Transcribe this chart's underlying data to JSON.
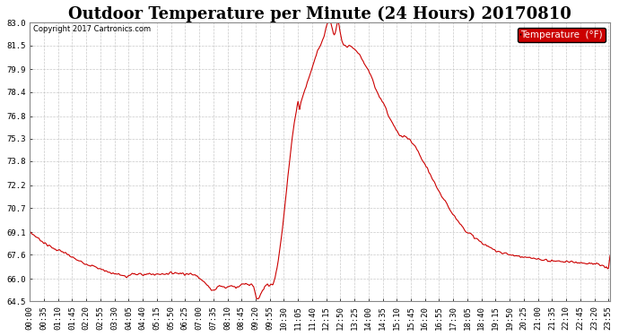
{
  "title": "Outdoor Temperature per Minute (24 Hours) 20170810",
  "copyright_text": "Copyright 2017 Cartronics.com",
  "legend_label": "Temperature  (°F)",
  "line_color": "#cc0000",
  "background_color": "#ffffff",
  "plot_bg_color": "#ffffff",
  "grid_color": "#bbbbbb",
  "ylim": [
    64.5,
    83.0
  ],
  "yticks": [
    64.5,
    66.0,
    67.6,
    69.1,
    70.7,
    72.2,
    73.8,
    75.3,
    76.8,
    78.4,
    79.9,
    81.5,
    83.0
  ],
  "title_fontsize": 13,
  "tick_fontsize": 6.5,
  "legend_bg_color": "#cc0000",
  "legend_text_color": "#ffffff",
  "key_points": [
    [
      0,
      69.1
    ],
    [
      20,
      68.7
    ],
    [
      40,
      68.3
    ],
    [
      60,
      68.0
    ],
    [
      80,
      67.8
    ],
    [
      100,
      67.5
    ],
    [
      120,
      67.2
    ],
    [
      140,
      67.0
    ],
    [
      160,
      66.8
    ],
    [
      180,
      66.6
    ],
    [
      200,
      66.4
    ],
    [
      220,
      66.3
    ],
    [
      235,
      66.15
    ],
    [
      240,
      66.1
    ],
    [
      245,
      66.2
    ],
    [
      250,
      66.3
    ],
    [
      255,
      66.35
    ],
    [
      260,
      66.3
    ],
    [
      265,
      66.25
    ],
    [
      270,
      66.3
    ],
    [
      275,
      66.35
    ],
    [
      280,
      66.3
    ],
    [
      290,
      66.3
    ],
    [
      300,
      66.3
    ],
    [
      320,
      66.3
    ],
    [
      340,
      66.35
    ],
    [
      360,
      66.4
    ],
    [
      380,
      66.35
    ],
    [
      400,
      66.3
    ],
    [
      415,
      66.2
    ],
    [
      425,
      66.0
    ],
    [
      435,
      65.7
    ],
    [
      445,
      65.4
    ],
    [
      450,
      65.3
    ],
    [
      455,
      65.25
    ],
    [
      460,
      65.3
    ],
    [
      465,
      65.45
    ],
    [
      470,
      65.55
    ],
    [
      475,
      65.5
    ],
    [
      480,
      65.45
    ],
    [
      485,
      65.4
    ],
    [
      490,
      65.45
    ],
    [
      495,
      65.5
    ],
    [
      500,
      65.55
    ],
    [
      505,
      65.5
    ],
    [
      510,
      65.45
    ],
    [
      515,
      65.5
    ],
    [
      520,
      65.55
    ],
    [
      525,
      65.6
    ],
    [
      530,
      65.65
    ],
    [
      535,
      65.7
    ],
    [
      540,
      65.65
    ],
    [
      545,
      65.6
    ],
    [
      550,
      65.65
    ],
    [
      555,
      65.5
    ],
    [
      558,
      65.2
    ],
    [
      560,
      64.9
    ],
    [
      562,
      64.7
    ],
    [
      565,
      64.6
    ],
    [
      568,
      64.65
    ],
    [
      570,
      64.8
    ],
    [
      573,
      65.0
    ],
    [
      575,
      65.1
    ],
    [
      577,
      65.2
    ],
    [
      580,
      65.3
    ],
    [
      582,
      65.4
    ],
    [
      585,
      65.5
    ],
    [
      587,
      65.55
    ],
    [
      590,
      65.6
    ],
    [
      592,
      65.5
    ],
    [
      595,
      65.55
    ],
    [
      598,
      65.6
    ],
    [
      600,
      65.65
    ],
    [
      603,
      65.7
    ],
    [
      605,
      65.8
    ],
    [
      608,
      66.0
    ],
    [
      610,
      66.3
    ],
    [
      613,
      66.7
    ],
    [
      616,
      67.2
    ],
    [
      620,
      68.0
    ],
    [
      625,
      69.0
    ],
    [
      630,
      70.2
    ],
    [
      635,
      71.5
    ],
    [
      640,
      72.8
    ],
    [
      645,
      74.0
    ],
    [
      650,
      75.2
    ],
    [
      655,
      76.2
    ],
    [
      660,
      77.0
    ],
    [
      663,
      77.5
    ],
    [
      665,
      77.8
    ],
    [
      667,
      77.5
    ],
    [
      669,
      77.3
    ],
    [
      671,
      77.6
    ],
    [
      675,
      78.0
    ],
    [
      680,
      78.4
    ],
    [
      685,
      78.8
    ],
    [
      690,
      79.2
    ],
    [
      695,
      79.6
    ],
    [
      700,
      80.0
    ],
    [
      705,
      80.4
    ],
    [
      710,
      80.8
    ],
    [
      715,
      81.2
    ],
    [
      720,
      81.5
    ],
    [
      725,
      81.8
    ],
    [
      728,
      82.0
    ],
    [
      730,
      82.2
    ],
    [
      733,
      82.5
    ],
    [
      735,
      82.7
    ],
    [
      737,
      82.9
    ],
    [
      739,
      83.0
    ],
    [
      741,
      83.1
    ],
    [
      743,
      83.15
    ],
    [
      745,
      83.1
    ],
    [
      747,
      82.9
    ],
    [
      749,
      82.7
    ],
    [
      751,
      82.5
    ],
    [
      753,
      82.3
    ],
    [
      755,
      82.2
    ],
    [
      757,
      82.3
    ],
    [
      759,
      82.5
    ],
    [
      761,
      82.8
    ],
    [
      763,
      83.0
    ],
    [
      765,
      83.05
    ],
    [
      767,
      82.8
    ],
    [
      769,
      82.5
    ],
    [
      771,
      82.2
    ],
    [
      774,
      81.8
    ],
    [
      778,
      81.5
    ],
    [
      783,
      81.5
    ],
    [
      788,
      81.4
    ],
    [
      793,
      81.5
    ],
    [
      798,
      81.4
    ],
    [
      803,
      81.3
    ],
    [
      808,
      81.2
    ],
    [
      813,
      81.0
    ],
    [
      820,
      80.8
    ],
    [
      830,
      80.3
    ],
    [
      840,
      79.8
    ],
    [
      850,
      79.2
    ],
    [
      855,
      78.8
    ],
    [
      860,
      78.4
    ],
    [
      870,
      78.0
    ],
    [
      880,
      77.5
    ],
    [
      890,
      76.8
    ],
    [
      900,
      76.3
    ],
    [
      910,
      75.8
    ],
    [
      918,
      75.5
    ],
    [
      922,
      75.4
    ],
    [
      928,
      75.5
    ],
    [
      933,
      75.4
    ],
    [
      938,
      75.3
    ],
    [
      945,
      75.1
    ],
    [
      955,
      74.8
    ],
    [
      965,
      74.3
    ],
    [
      975,
      73.8
    ],
    [
      985,
      73.3
    ],
    [
      995,
      72.8
    ],
    [
      1005,
      72.3
    ],
    [
      1015,
      71.8
    ],
    [
      1025,
      71.3
    ],
    [
      1035,
      70.9
    ],
    [
      1045,
      70.5
    ],
    [
      1055,
      70.1
    ],
    [
      1065,
      69.7
    ],
    [
      1075,
      69.4
    ],
    [
      1085,
      69.1
    ],
    [
      1095,
      68.9
    ],
    [
      1105,
      68.7
    ],
    [
      1115,
      68.5
    ],
    [
      1125,
      68.3
    ],
    [
      1135,
      68.15
    ],
    [
      1145,
      68.0
    ],
    [
      1160,
      67.85
    ],
    [
      1175,
      67.7
    ],
    [
      1190,
      67.6
    ],
    [
      1210,
      67.5
    ],
    [
      1230,
      67.4
    ],
    [
      1260,
      67.3
    ],
    [
      1290,
      67.2
    ],
    [
      1320,
      67.15
    ],
    [
      1350,
      67.1
    ],
    [
      1380,
      67.05
    ],
    [
      1400,
      67.0
    ],
    [
      1415,
      66.9
    ],
    [
      1425,
      66.8
    ],
    [
      1430,
      66.7
    ],
    [
      1435,
      66.65
    ],
    [
      1439,
      67.6
    ]
  ],
  "xtick_step": 35
}
